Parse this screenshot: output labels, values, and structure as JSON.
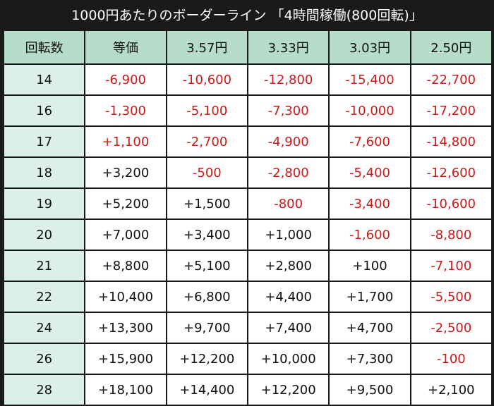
{
  "title": "1000円あたりのボーダーライン 「4時間稼働(800回転)」",
  "headers": [
    "回転数",
    "等価",
    "3.57円",
    "3.33円",
    "3.03円",
    "2.50円"
  ],
  "rows": [
    {
      "rot": "14",
      "cells": [
        "-6,900",
        "-10,600",
        "-12,800",
        "-15,400",
        "-22,700"
      ]
    },
    {
      "rot": "16",
      "cells": [
        "-1,300",
        "-5,100",
        "-7,300",
        "-10,000",
        "-17,200"
      ]
    },
    {
      "rot": "17",
      "cells": [
        "+1,100",
        "-2,700",
        "-4,900",
        "-7,600",
        "-14,800"
      ]
    },
    {
      "rot": "18",
      "cells": [
        "+3,200",
        "-500",
        "-2,800",
        "-5,400",
        "-12,600"
      ]
    },
    {
      "rot": "19",
      "cells": [
        "+5,200",
        "+1,500",
        "-800",
        "-3,400",
        "-10,600"
      ]
    },
    {
      "rot": "20",
      "cells": [
        "+7,000",
        "+3,400",
        "+1,000",
        "-1,600",
        "-8,800"
      ]
    },
    {
      "rot": "21",
      "cells": [
        "+8,800",
        "+5,100",
        "+2,800",
        "+100",
        "-7,100"
      ]
    },
    {
      "rot": "22",
      "cells": [
        "+10,400",
        "+6,800",
        "+4,400",
        "+1,700",
        "-5,500"
      ]
    },
    {
      "rot": "24",
      "cells": [
        "+13,300",
        "+9,700",
        "+7,400",
        "+4,700",
        "-2,500"
      ]
    },
    {
      "rot": "26",
      "cells": [
        "+15,900",
        "+12,200",
        "+10,000",
        "+7,300",
        "-100"
      ]
    },
    {
      "rot": "28",
      "cells": [
        "+18,100",
        "+14,400",
        "+12,200",
        "+9,500",
        "+2,100"
      ]
    }
  ],
  "colors": {
    "background": "#1a1a1a",
    "header_bg": "#b5ddc9",
    "rotation_col_bg": "#dcefea",
    "cell_bg": "#ffffff",
    "negative_text": "#d01818",
    "positive_text": "#111111",
    "highlight_text": "#d01818"
  },
  "highlighted_cells": [
    {
      "row": 2,
      "col": 0
    }
  ]
}
